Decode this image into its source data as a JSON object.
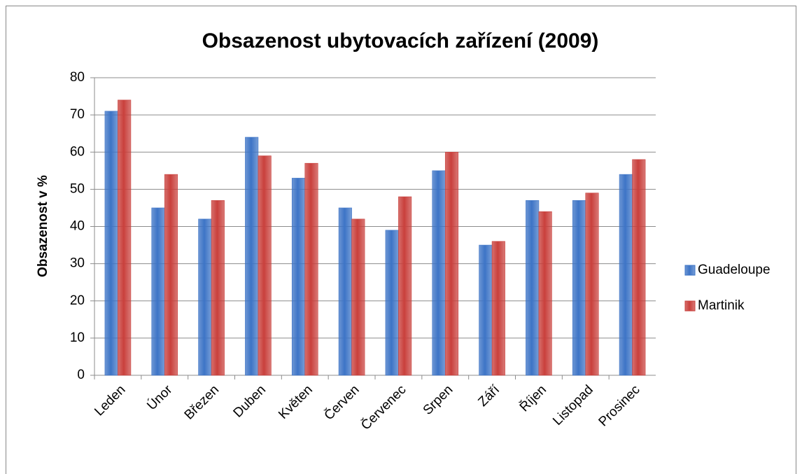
{
  "chart_data": {
    "type": "bar",
    "title": "Obsazenost ubytovacích zařízení (2009)",
    "y_label": "Obsazenost v %",
    "categories": [
      "Leden",
      "Únor",
      "Březen",
      "Duben",
      "Květen",
      "Červen",
      "Červenec",
      "Srpen",
      "Září",
      "Říjen",
      "Listopad",
      "Prosinec"
    ],
    "series": [
      {
        "name": "Guadeloupe",
        "color": "#3d74c6",
        "values": [
          71,
          45,
          42,
          64,
          53,
          45,
          39,
          55,
          35,
          47,
          47,
          54
        ]
      },
      {
        "name": "Martinik",
        "color": "#c9403c",
        "values": [
          74,
          54,
          47,
          59,
          57,
          42,
          48,
          60,
          36,
          44,
          49,
          58
        ]
      }
    ],
    "ylim": [
      0,
      80
    ],
    "yticks": [
      0,
      10,
      20,
      30,
      40,
      50,
      60,
      70,
      80
    ],
    "grid": true,
    "legend": "right"
  }
}
